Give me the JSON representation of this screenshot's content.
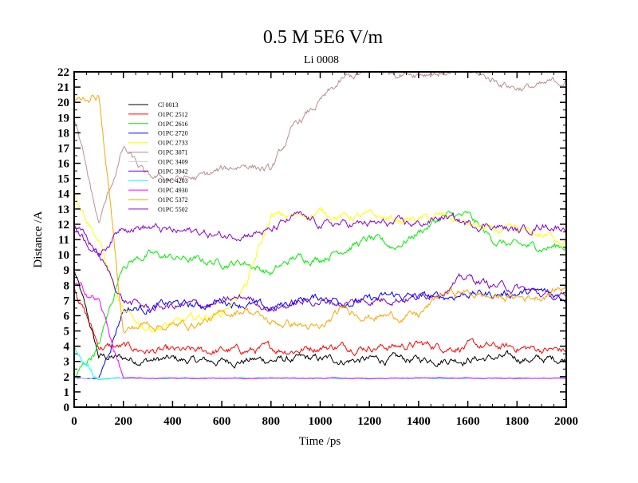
{
  "chart_data": {
    "type": "line",
    "title": "0.5 M 5E6 V/m",
    "subtitle": "Li 0008",
    "xlabel": "Time /ps",
    "ylabel": "Distance /A",
    "xlim": [
      0,
      2000
    ],
    "ylim": [
      0,
      22
    ],
    "xticks": [
      0,
      200,
      400,
      600,
      800,
      1000,
      1200,
      1400,
      1600,
      1800,
      2000
    ],
    "yticks": [
      0,
      1,
      2,
      3,
      4,
      5,
      6,
      7,
      8,
      9,
      10,
      11,
      12,
      13,
      14,
      15,
      16,
      17,
      18,
      19,
      20,
      21,
      22
    ],
    "grid": false,
    "legend_position": "top-left",
    "x": [
      0,
      100,
      200,
      300,
      400,
      500,
      600,
      700,
      800,
      900,
      1000,
      1100,
      1200,
      1300,
      1400,
      1500,
      1600,
      1700,
      1800,
      1900,
      2000
    ],
    "series": [
      {
        "name": "Cl 0013",
        "color": "#000000",
        "values": [
          9,
          3.3,
          3.2,
          3.1,
          3.1,
          3.0,
          3.0,
          3.1,
          3.1,
          3.1,
          3.1,
          3.1,
          3.1,
          3.1,
          3.1,
          3.2,
          3.2,
          3.2,
          3.2,
          3.1,
          3.2
        ]
      },
      {
        "name": "O1PC 2512",
        "color": "#ff0000",
        "values": [
          8,
          4,
          3.9,
          3.7,
          3.6,
          3.6,
          3.7,
          3.7,
          3.8,
          3.8,
          4.0,
          4.0,
          4.0,
          4.0,
          4.1,
          4.0,
          4.0,
          3.9,
          3.9,
          3.8,
          3.7
        ]
      },
      {
        "name": "O1PC 2616",
        "color": "#00ee00",
        "values": [
          1.9,
          4,
          9.5,
          10,
          9.8,
          9.6,
          9.5,
          9.5,
          8.8,
          9.8,
          9.8,
          10.5,
          11,
          10.5,
          11.5,
          12.5,
          12.5,
          11,
          10.5,
          10.5,
          10.6
        ]
      },
      {
        "name": "O1PC 2720",
        "color": "#0000ff",
        "values": [
          1.9,
          1.9,
          6.5,
          6.5,
          6.8,
          6.6,
          7,
          6.8,
          6.4,
          7,
          7.2,
          7,
          7,
          7.3,
          7.2,
          7.2,
          7.5,
          7.4,
          7.5,
          7.5,
          7.2
        ]
      },
      {
        "name": "O1PC 2733",
        "color": "#ffff00",
        "values": [
          14,
          11,
          6,
          5.2,
          5.4,
          5.8,
          6.2,
          8,
          12.5,
          12.5,
          12.8,
          12.5,
          12.5,
          12.3,
          12.3,
          12.5,
          12,
          11.5,
          11.5,
          11.3,
          11
        ]
      },
      {
        "name": "O1PC 3071",
        "color": "#bc8f8f",
        "values": [
          19,
          12,
          17,
          15,
          15,
          15,
          15.5,
          16,
          15.5,
          18.5,
          20,
          21.5,
          22,
          22,
          22,
          22,
          22,
          21.5,
          21,
          21,
          21.5
        ]
      },
      {
        "name": "O1PC 3409",
        "color": "#d3d3d3",
        "values": [
          1.9,
          1.9,
          1.9,
          1.9,
          1.9,
          1.9,
          1.9,
          1.9,
          1.9,
          1.9,
          1.9,
          1.9,
          1.9,
          1.9,
          1.9,
          1.9,
          1.9,
          1.9,
          1.9,
          1.9,
          1.9
        ]
      },
      {
        "name": "O1PC 3942",
        "color": "#7a00cc",
        "values": [
          12,
          10,
          7,
          6.5,
          6.6,
          6.7,
          6.8,
          7.2,
          6.5,
          6.8,
          7,
          6.8,
          7,
          7.2,
          7.2,
          7.8,
          8.5,
          8,
          7.8,
          7.4,
          7
        ]
      },
      {
        "name": "O1PC 4203",
        "color": "#00ffff",
        "values": [
          4,
          1.9,
          1.9,
          1.9,
          1.9,
          1.9,
          1.9,
          1.9,
          1.9,
          1.9,
          1.9,
          1.9,
          1.9,
          1.9,
          1.9,
          1.9,
          1.9,
          1.9,
          1.9,
          1.9,
          1.9
        ]
      },
      {
        "name": "O1PC 4930",
        "color": "#ff00ff",
        "values": [
          8,
          7,
          1.9,
          1.9,
          1.9,
          1.9,
          1.9,
          1.9,
          1.9,
          1.9,
          1.9,
          1.9,
          1.9,
          1.9,
          1.9,
          1.9,
          1.9,
          1.9,
          1.9,
          1.9,
          1.9
        ]
      },
      {
        "name": "O1PC 5372",
        "color": "#ffa500",
        "values": [
          20,
          20.5,
          5,
          5.5,
          5.3,
          5.5,
          6,
          6.5,
          5.5,
          5.5,
          5,
          6.5,
          6,
          6,
          6,
          7.5,
          7.5,
          7.2,
          7.2,
          7.3,
          8
        ]
      },
      {
        "name": "O1PC 5502",
        "color": "#8a00d4",
        "values": [
          12,
          10,
          12,
          11.8,
          11.5,
          11.5,
          11.2,
          11.5,
          11.5,
          12.5,
          12,
          12,
          12,
          12,
          12,
          12.5,
          12,
          12,
          11.5,
          12,
          11.8
        ]
      }
    ]
  }
}
